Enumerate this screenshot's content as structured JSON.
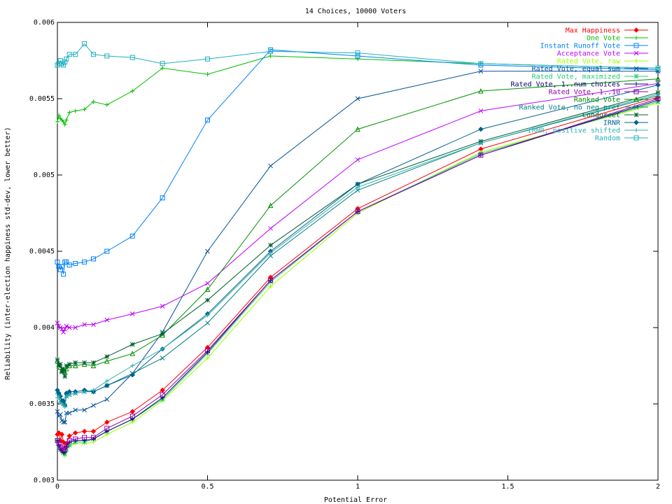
{
  "chart_data": {
    "type": "line",
    "title": "14 Choices, 10000 Voters",
    "xlabel": "Potential Error",
    "ylabel": "Reliability (inter-election happiness std-dev, lower better)",
    "xlim": [
      0,
      2
    ],
    "ylim": [
      0.003,
      0.006
    ],
    "x_ticks": [
      0,
      0.5,
      1,
      1.5,
      2
    ],
    "x_tick_labels": [
      "0",
      "0.5",
      "1",
      "1.5",
      "2"
    ],
    "y_ticks": [
      0.003,
      0.0035,
      0.004,
      0.0045,
      0.005,
      0.0055,
      0.006
    ],
    "y_tick_labels": [
      "0.003",
      "0.0035",
      "0.004",
      "0.0045",
      "0.005",
      "0.0055",
      "0.006"
    ],
    "grid": false,
    "legend_position": "top-right",
    "x": [
      0,
      0.005,
      0.01,
      0.015,
      0.02,
      0.025,
      0.03,
      0.04,
      0.06,
      0.09,
      0.12,
      0.165,
      0.25,
      0.35,
      0.5,
      0.71,
      1,
      1.41,
      2
    ],
    "series": [
      {
        "name": "Max Happiness",
        "color": "#ff0000",
        "marker": "diamond",
        "values": [
          0.0033,
          0.00331,
          0.00326,
          0.0033,
          0.00325,
          0.00321,
          0.00324,
          0.00329,
          0.00331,
          0.00332,
          0.00332,
          0.00338,
          0.00345,
          0.00359,
          0.00387,
          0.00433,
          0.00478,
          0.00517,
          0.00551
        ]
      },
      {
        "name": "One Vote",
        "color": "#00c000",
        "marker": "plus",
        "values": [
          0.00535,
          0.00539,
          0.00537,
          0.00536,
          0.00535,
          0.00533,
          0.00536,
          0.00541,
          0.00542,
          0.00543,
          0.00548,
          0.00546,
          0.00555,
          0.0057,
          0.00566,
          0.00578,
          0.00576,
          0.00573,
          0.0057
        ]
      },
      {
        "name": "Instant Runoff Vote",
        "color": "#0080ff",
        "marker": "square",
        "values": [
          0.00443,
          0.0044,
          0.00438,
          0.0044,
          0.00435,
          0.00443,
          0.00443,
          0.00441,
          0.00442,
          0.00443,
          0.00445,
          0.0045,
          0.0046,
          0.00485,
          0.00536,
          0.00582,
          0.00578,
          0.00572,
          0.00569
        ]
      },
      {
        "name": "Acceptance Vote",
        "color": "#c000ff",
        "marker": "x",
        "values": [
          0.00403,
          0.00401,
          0.004,
          0.00399,
          0.00397,
          0.00399,
          0.00401,
          0.004,
          0.004,
          0.00402,
          0.00402,
          0.00405,
          0.00409,
          0.00414,
          0.00429,
          0.00465,
          0.0051,
          0.00542,
          0.0056
        ]
      },
      {
        "name": "Rated Vote, raw",
        "color": "#a0ff00",
        "marker": "plus",
        "values": [
          0.00325,
          0.00322,
          0.0032,
          0.00318,
          0.00317,
          0.00316,
          0.0032,
          0.00322,
          0.00324,
          0.00324,
          0.00325,
          0.0033,
          0.00338,
          0.00352,
          0.0038,
          0.00427,
          0.00475,
          0.00515,
          0.00547
        ]
      },
      {
        "name": "Rated Vote, equal sum",
        "color": "#00509a",
        "marker": "x",
        "values": [
          0.00345,
          0.00342,
          0.00343,
          0.00339,
          0.00338,
          0.00338,
          0.00344,
          0.00344,
          0.00346,
          0.00346,
          0.00349,
          0.00353,
          0.0037,
          0.00397,
          0.0045,
          0.00506,
          0.0055,
          0.00568,
          0.00568
        ]
      },
      {
        "name": "Rated Vote, maximized",
        "color": "#20d070",
        "marker": "star",
        "values": [
          0.00326,
          0.00322,
          0.0032,
          0.00319,
          0.00318,
          0.00317,
          0.0032,
          0.00323,
          0.00325,
          0.00325,
          0.00327,
          0.00332,
          0.0034,
          0.00353,
          0.00383,
          0.0043,
          0.00476,
          0.00514,
          0.00548
        ]
      },
      {
        "name": "Rated Vote, 1..num choices",
        "color": "#000070",
        "marker": "plus",
        "values": [
          0.00326,
          0.00323,
          0.0032,
          0.00319,
          0.00318,
          0.00318,
          0.00322,
          0.00325,
          0.00326,
          0.00326,
          0.00327,
          0.00332,
          0.0034,
          0.00354,
          0.00384,
          0.00431,
          0.00476,
          0.00513,
          0.00549
        ]
      },
      {
        "name": "Rated Vote, 1..10",
        "color": "#9000b0",
        "marker": "square",
        "values": [
          0.00326,
          0.00324,
          0.00322,
          0.00321,
          0.0032,
          0.0032,
          0.00323,
          0.00326,
          0.00327,
          0.00328,
          0.00328,
          0.00334,
          0.00342,
          0.00356,
          0.00385,
          0.00431,
          0.00476,
          0.00513,
          0.0055
        ]
      },
      {
        "name": "Ranked Vote",
        "color": "#009000",
        "marker": "triangle",
        "values": [
          0.00378,
          0.00376,
          0.00374,
          0.00372,
          0.00372,
          0.00371,
          0.00373,
          0.00375,
          0.00375,
          0.00376,
          0.00375,
          0.00378,
          0.00383,
          0.00395,
          0.00425,
          0.0048,
          0.0053,
          0.00555,
          0.00563
        ]
      },
      {
        "name": "Ranked Vote, no neg pref",
        "color": "#008080",
        "marker": "x",
        "values": [
          0.00358,
          0.00355,
          0.00352,
          0.00351,
          0.0035,
          0.00349,
          0.00355,
          0.00356,
          0.00357,
          0.00358,
          0.00358,
          0.00362,
          0.0037,
          0.0038,
          0.00403,
          0.00447,
          0.0049,
          0.00521,
          0.00552
        ]
      },
      {
        "name": "Condorcet",
        "color": "#006030",
        "marker": "star",
        "values": [
          0.00379,
          0.00375,
          0.00376,
          0.00371,
          0.00373,
          0.00368,
          0.00375,
          0.00376,
          0.00377,
          0.00377,
          0.00377,
          0.00381,
          0.00389,
          0.00396,
          0.00418,
          0.00454,
          0.00494,
          0.00522,
          0.00554
        ]
      },
      {
        "name": "IRNR",
        "color": "#006090",
        "marker": "diamond",
        "values": [
          0.00359,
          0.00357,
          0.00355,
          0.00352,
          0.00352,
          0.00349,
          0.00357,
          0.00358,
          0.00358,
          0.00359,
          0.00358,
          0.00362,
          0.00369,
          0.00386,
          0.00409,
          0.0045,
          0.00494,
          0.0053,
          0.00559
        ]
      },
      {
        "name": "IRNR, positive shifted",
        "color": "#30b0b0",
        "marker": "plus",
        "values": [
          0.00354,
          0.00355,
          0.00351,
          0.0035,
          0.00349,
          0.00348,
          0.00355,
          0.00356,
          0.00357,
          0.00358,
          0.00359,
          0.00365,
          0.00375,
          0.00386,
          0.00408,
          0.00449,
          0.00492,
          0.00521,
          0.00553
        ]
      },
      {
        "name": "Random",
        "color": "#20b0c0",
        "marker": "square",
        "values": [
          0.00572,
          0.00573,
          0.00575,
          0.00573,
          0.00572,
          0.00574,
          0.00576,
          0.00579,
          0.00579,
          0.00586,
          0.00579,
          0.00578,
          0.00577,
          0.00573,
          0.00576,
          0.00581,
          0.0058,
          0.00573,
          0.0057
        ]
      }
    ]
  }
}
